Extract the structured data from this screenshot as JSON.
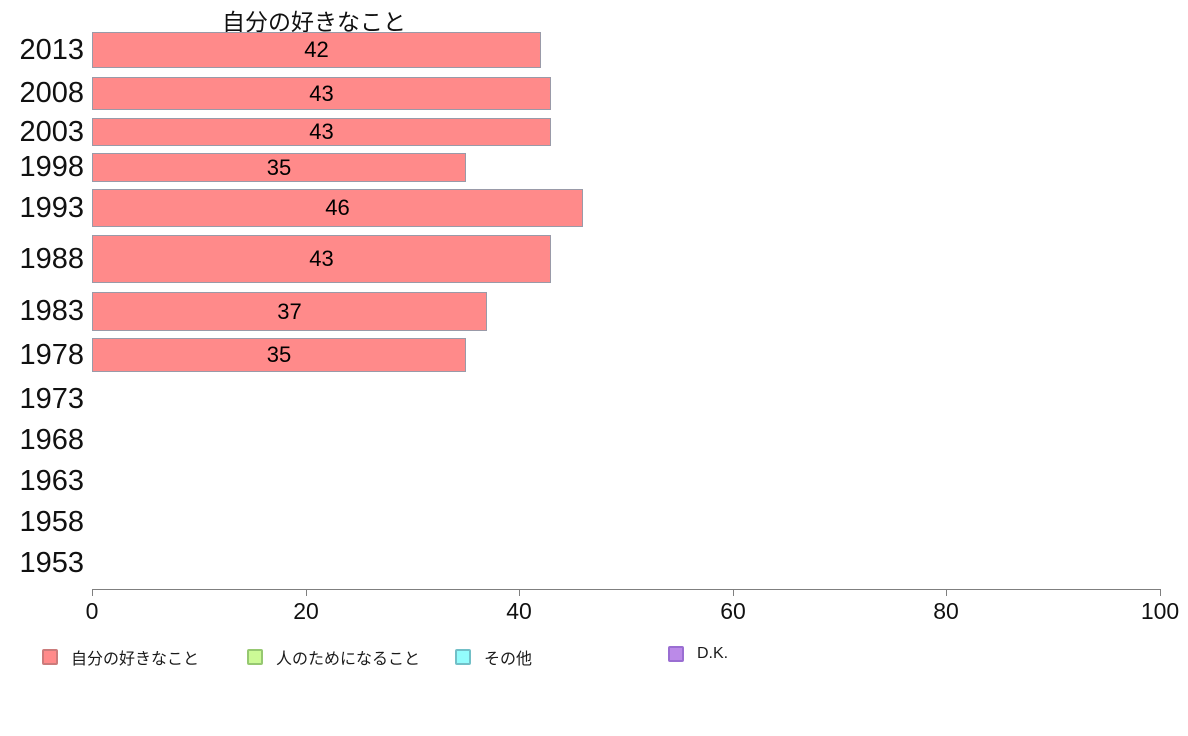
{
  "chart_data": {
    "type": "bar",
    "orientation": "horizontal",
    "title": "自分の好きなこと",
    "categories": [
      "2013",
      "2008",
      "2003",
      "1998",
      "1993",
      "1988",
      "1983",
      "1978",
      "1973",
      "1968",
      "1963",
      "1958",
      "1953"
    ],
    "series": [
      {
        "name": "自分の好きなこと",
        "color": "#ff8a8a",
        "swatch_border_color": "#cb7b7b",
        "bar_border_color": "#999aa8",
        "values": [
          42,
          43,
          43,
          35,
          46,
          43,
          37,
          35,
          null,
          null,
          null,
          null,
          null
        ]
      },
      {
        "name": "人のためになること",
        "color": "#ccfa96",
        "swatch_border_color": "#96c871",
        "values": []
      },
      {
        "name": "その他",
        "color": "#93fcfc",
        "swatch_border_color": "#72bfc7",
        "values": []
      },
      {
        "name": "D.K.",
        "color": "#bb8ae8",
        "swatch_border_color": "#9a6ed2",
        "values": []
      }
    ],
    "value_labels": "shown-centered-in-bar",
    "xlabel": "",
    "ylabel": "",
    "xlim": [
      0,
      100
    ],
    "x_ticks": [
      0,
      20,
      40,
      60,
      80,
      100
    ],
    "grid": false,
    "legend_position": "bottom",
    "axis_color": "#7f7f7f",
    "background_color": "#ffffff",
    "text_color": "#111111"
  }
}
